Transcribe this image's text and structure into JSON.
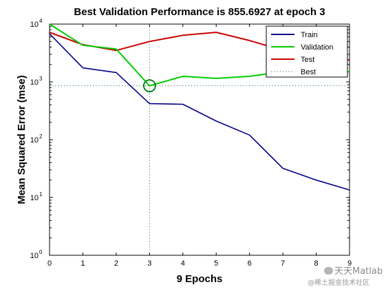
{
  "chart_data": {
    "type": "line",
    "title": "Best Validation Performance is 855.6927 at epoch 3",
    "xlabel": "9 Epochs",
    "ylabel": "Mean Squared Error  (mse)",
    "xlim": [
      0,
      9
    ],
    "ylim": [
      1,
      10000
    ],
    "yscale": "log",
    "xticks": [
      "0",
      "1",
      "2",
      "3",
      "4",
      "5",
      "6",
      "7",
      "8",
      "9"
    ],
    "yticks": [
      {
        "base": "10",
        "exp": "0",
        "value": 1
      },
      {
        "base": "10",
        "exp": "1",
        "value": 10
      },
      {
        "base": "10",
        "exp": "2",
        "value": 100
      },
      {
        "base": "10",
        "exp": "3",
        "value": 1000
      },
      {
        "base": "10",
        "exp": "4",
        "value": 10000
      }
    ],
    "x": [
      0,
      1,
      2,
      3,
      4,
      5,
      6,
      7,
      8,
      9
    ],
    "series": [
      {
        "name": "Train",
        "color": "#00008b",
        "values": [
          6800,
          1750,
          1450,
          420,
          410,
          210,
          120,
          32,
          20,
          13.5
        ]
      },
      {
        "name": "Validation",
        "color": "#00cc00",
        "values": [
          10000,
          4300,
          3700,
          855.6927,
          1250,
          1150,
          1250,
          1500,
          1500,
          1500
        ]
      },
      {
        "name": "Test",
        "color": "#cc0000",
        "values": [
          7200,
          4400,
          3500,
          5000,
          6400,
          7200,
          5200,
          3500,
          2500,
          2400
        ]
      }
    ],
    "best": {
      "name": "Best",
      "epoch": 3,
      "value": 855.6927,
      "color": "#2e7d32"
    },
    "grid": false,
    "legend_position": "top-right"
  },
  "watermark": {
    "brand": "天天Matlab",
    "site": "@稀土掘金技术社区"
  }
}
